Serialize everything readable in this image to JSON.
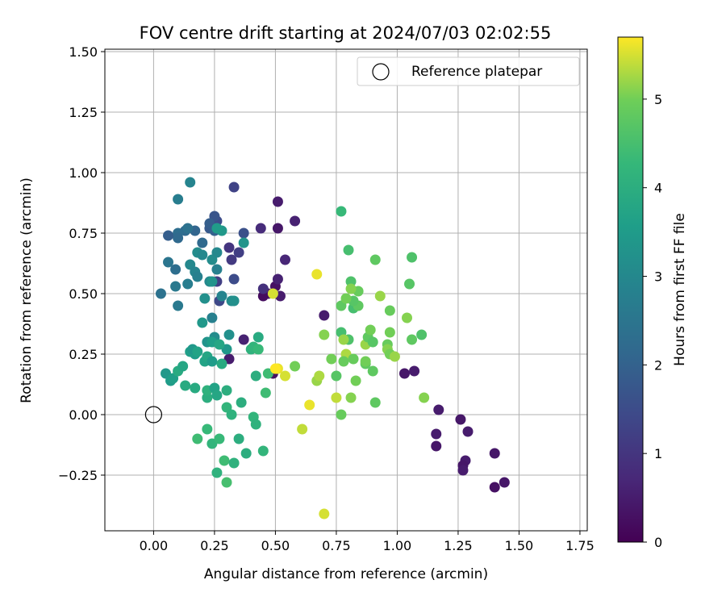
{
  "chart_data": {
    "type": "scatter",
    "title": "FOV centre drift starting at 2024/07/03 02:02:55",
    "xlabel": "Angular distance from reference (arcmin)",
    "ylabel": "Rotation from reference (arcmin)",
    "xlim": [
      -0.2,
      1.78
    ],
    "ylim": [
      -0.48,
      1.51
    ],
    "xticks": [
      "0.00",
      "0.25",
      "0.50",
      "0.75",
      "1.00",
      "1.25",
      "1.50",
      "1.75"
    ],
    "xtick_values": [
      0,
      0.25,
      0.5,
      0.75,
      1.0,
      1.25,
      1.5,
      1.75
    ],
    "yticks": [
      "−0.25",
      "0.00",
      "0.25",
      "0.50",
      "0.75",
      "1.00",
      "1.25",
      "1.50"
    ],
    "ytick_values": [
      -0.25,
      0,
      0.25,
      0.5,
      0.75,
      1.0,
      1.25,
      1.5
    ],
    "grid": true,
    "legend": {
      "position": "upper right",
      "entries": [
        "Reference platepar"
      ]
    },
    "reference_point": {
      "x": 0.0,
      "y": 0.0
    },
    "colorbar": {
      "label": "Hours from first FF file",
      "range": [
        0,
        5.7
      ],
      "ticks": [
        "0",
        "1",
        "2",
        "3",
        "4",
        "5"
      ],
      "tick_values": [
        0,
        1,
        2,
        3,
        4,
        5
      ],
      "colormap": "viridis"
    },
    "points": [
      [
        0.5,
        0.53,
        0.3
      ],
      [
        0.47,
        0.5,
        0.4
      ],
      [
        0.45,
        0.49,
        0.2
      ],
      [
        0.52,
        0.49,
        0.5
      ],
      [
        0.51,
        0.56,
        0.6
      ],
      [
        0.54,
        0.64,
        0.7
      ],
      [
        0.44,
        0.77,
        0.8
      ],
      [
        0.51,
        0.77,
        0.4
      ],
      [
        0.58,
        0.8,
        0.6
      ],
      [
        0.51,
        0.88,
        0.5
      ],
      [
        0.45,
        0.52,
        0.9
      ],
      [
        0.7,
        0.41,
        0.5
      ],
      [
        0.49,
        0.17,
        0.3
      ],
      [
        0.37,
        0.31,
        0.6
      ],
      [
        0.31,
        0.23,
        0.5
      ],
      [
        1.03,
        0.17,
        0.4
      ],
      [
        1.07,
        0.18,
        0.5
      ],
      [
        1.17,
        0.02,
        0.5
      ],
      [
        1.16,
        -0.08,
        0.5
      ],
      [
        1.16,
        -0.13,
        0.4
      ],
      [
        1.26,
        -0.02,
        0.4
      ],
      [
        1.29,
        -0.07,
        0.5
      ],
      [
        1.28,
        -0.19,
        0.5
      ],
      [
        1.27,
        -0.21,
        0.4
      ],
      [
        1.27,
        -0.23,
        0.5
      ],
      [
        1.4,
        -0.16,
        0.4
      ],
      [
        1.4,
        -0.3,
        0.3
      ],
      [
        1.44,
        -0.28,
        0.4
      ],
      [
        0.33,
        0.94,
        1.3
      ],
      [
        0.32,
        0.64,
        1.1
      ],
      [
        0.35,
        0.67,
        1.2
      ],
      [
        0.31,
        0.69,
        1.0
      ],
      [
        0.26,
        0.55,
        1.2
      ],
      [
        0.33,
        0.56,
        1.5
      ],
      [
        0.27,
        0.47,
        1.4
      ],
      [
        0.37,
        0.75,
        1.6
      ],
      [
        0.26,
        0.8,
        1.5
      ],
      [
        0.25,
        0.82,
        1.7
      ],
      [
        0.23,
        0.77,
        1.8
      ],
      [
        0.25,
        0.76,
        2.0
      ],
      [
        0.23,
        0.79,
        1.9
      ],
      [
        0.2,
        0.71,
        2.2
      ],
      [
        0.17,
        0.76,
        2.1
      ],
      [
        0.13,
        0.76,
        2.2
      ],
      [
        0.14,
        0.77,
        2.4
      ],
      [
        0.1,
        0.75,
        2.3
      ],
      [
        0.1,
        0.73,
        2.2
      ],
      [
        0.06,
        0.74,
        1.9
      ],
      [
        0.03,
        0.5,
        2.4
      ],
      [
        0.06,
        0.63,
        2.5
      ],
      [
        0.09,
        0.6,
        2.3
      ],
      [
        0.09,
        0.53,
        2.6
      ],
      [
        0.14,
        0.54,
        2.7
      ],
      [
        0.1,
        0.45,
        2.6
      ],
      [
        0.1,
        0.89,
        2.7
      ],
      [
        0.15,
        0.96,
        2.9
      ],
      [
        0.15,
        0.62,
        3.0
      ],
      [
        0.17,
        0.59,
        2.9
      ],
      [
        0.18,
        0.57,
        2.8
      ],
      [
        0.18,
        0.67,
        3.1
      ],
      [
        0.2,
        0.66,
        3.0
      ],
      [
        0.21,
        0.48,
        3.2
      ],
      [
        0.23,
        0.55,
        3.0
      ],
      [
        0.24,
        0.55,
        3.3
      ],
      [
        0.24,
        0.64,
        3.1
      ],
      [
        0.26,
        0.6,
        2.8
      ],
      [
        0.26,
        0.67,
        3.0
      ],
      [
        0.28,
        0.49,
        2.9
      ],
      [
        0.32,
        0.47,
        3.1
      ],
      [
        0.33,
        0.47,
        3.2
      ],
      [
        0.37,
        0.71,
        3.3
      ],
      [
        0.28,
        0.76,
        3.4
      ],
      [
        0.26,
        0.77,
        3.5
      ],
      [
        0.2,
        0.38,
        3.4
      ],
      [
        0.24,
        0.4,
        2.8
      ],
      [
        0.25,
        0.32,
        3.1
      ],
      [
        0.31,
        0.33,
        3.2
      ],
      [
        0.22,
        0.3,
        3.3
      ],
      [
        0.24,
        0.3,
        3.6
      ],
      [
        0.3,
        0.27,
        3.4
      ],
      [
        0.17,
        0.25,
        3.5
      ],
      [
        0.15,
        0.26,
        3.6
      ],
      [
        0.16,
        0.27,
        3.4
      ],
      [
        0.18,
        0.26,
        3.7
      ],
      [
        0.21,
        0.22,
        3.7
      ],
      [
        0.22,
        0.24,
        3.8
      ],
      [
        0.24,
        0.22,
        3.5
      ],
      [
        0.27,
        0.29,
        3.8
      ],
      [
        0.28,
        0.21,
        3.9
      ],
      [
        0.05,
        0.17,
        3.4
      ],
      [
        0.07,
        0.14,
        3.5
      ],
      [
        0.08,
        0.15,
        3.6
      ],
      [
        0.1,
        0.18,
        3.9
      ],
      [
        0.12,
        0.2,
        3.8
      ],
      [
        0.13,
        0.12,
        3.9
      ],
      [
        0.17,
        0.11,
        3.9
      ],
      [
        0.22,
        0.07,
        4.0
      ],
      [
        0.22,
        0.1,
        4.1
      ],
      [
        0.25,
        0.11,
        3.7
      ],
      [
        0.26,
        0.08,
        3.8
      ],
      [
        0.3,
        0.1,
        4.0
      ],
      [
        0.3,
        0.03,
        4.2
      ],
      [
        0.32,
        0.0,
        4.1
      ],
      [
        0.36,
        0.05,
        4.0
      ],
      [
        0.4,
        0.27,
        4.1
      ],
      [
        0.41,
        0.28,
        4.2
      ],
      [
        0.43,
        0.32,
        3.9
      ],
      [
        0.43,
        0.27,
        4.3
      ],
      [
        0.42,
        0.16,
        4.0
      ],
      [
        0.46,
        0.09,
        4.4
      ],
      [
        0.47,
        0.17,
        4.4
      ],
      [
        0.41,
        -0.01,
        4.2
      ],
      [
        0.42,
        -0.04,
        4.1
      ],
      [
        0.22,
        -0.06,
        4.3
      ],
      [
        0.24,
        -0.12,
        4.2
      ],
      [
        0.18,
        -0.1,
        4.4
      ],
      [
        0.27,
        -0.1,
        4.3
      ],
      [
        0.29,
        -0.19,
        4.4
      ],
      [
        0.3,
        -0.28,
        4.5
      ],
      [
        0.26,
        -0.24,
        4.1
      ],
      [
        0.35,
        -0.1,
        4.0
      ],
      [
        0.33,
        -0.2,
        4.1
      ],
      [
        0.38,
        -0.16,
        4.0
      ],
      [
        0.45,
        -0.15,
        4.2
      ],
      [
        0.77,
        0.84,
        4.3
      ],
      [
        0.8,
        0.68,
        4.5
      ],
      [
        1.06,
        0.65,
        4.6
      ],
      [
        0.91,
        0.64,
        4.8
      ],
      [
        1.05,
        0.54,
        4.7
      ],
      [
        0.81,
        0.55,
        4.6
      ],
      [
        0.84,
        0.51,
        4.9
      ],
      [
        0.82,
        0.44,
        4.5
      ],
      [
        0.84,
        0.45,
        4.8
      ],
      [
        0.77,
        0.45,
        4.8
      ],
      [
        0.82,
        0.47,
        4.7
      ],
      [
        0.79,
        0.48,
        5.0
      ],
      [
        0.81,
        0.52,
        5.1
      ],
      [
        0.93,
        0.49,
        5.2
      ],
      [
        0.97,
        0.43,
        4.9
      ],
      [
        1.04,
        0.4,
        5.1
      ],
      [
        1.06,
        0.31,
        4.8
      ],
      [
        1.1,
        0.33,
        4.6
      ],
      [
        0.97,
        0.34,
        5.0
      ],
      [
        0.96,
        0.29,
        4.9
      ],
      [
        0.96,
        0.27,
        5.1
      ],
      [
        0.97,
        0.25,
        5.0
      ],
      [
        0.99,
        0.24,
        5.2
      ],
      [
        0.87,
        0.29,
        5.2
      ],
      [
        0.88,
        0.32,
        4.8
      ],
      [
        0.89,
        0.35,
        5.0
      ],
      [
        0.9,
        0.3,
        4.7
      ],
      [
        0.8,
        0.31,
        4.6
      ],
      [
        0.77,
        0.34,
        4.5
      ],
      [
        0.78,
        0.31,
        5.2
      ],
      [
        0.79,
        0.25,
        5.3
      ],
      [
        0.82,
        0.23,
        4.9
      ],
      [
        0.87,
        0.21,
        4.8
      ],
      [
        0.87,
        0.22,
        5.0
      ],
      [
        0.9,
        0.18,
        4.8
      ],
      [
        0.83,
        0.14,
        5.0
      ],
      [
        0.78,
        0.22,
        4.9
      ],
      [
        0.73,
        0.23,
        5.0
      ],
      [
        0.7,
        0.33,
        5.1
      ],
      [
        0.75,
        0.16,
        4.7
      ],
      [
        0.67,
        0.14,
        5.2
      ],
      [
        0.68,
        0.16,
        5.3
      ],
      [
        0.75,
        0.07,
        5.4
      ],
      [
        0.81,
        0.07,
        5.1
      ],
      [
        0.91,
        0.05,
        4.8
      ],
      [
        0.77,
        0.0,
        4.9
      ],
      [
        1.11,
        0.07,
        5.1
      ],
      [
        0.64,
        0.04,
        5.6
      ],
      [
        0.61,
        -0.06,
        5.4
      ],
      [
        0.58,
        0.2,
        5.0
      ],
      [
        0.54,
        0.16,
        5.5
      ],
      [
        0.51,
        0.19,
        5.6
      ],
      [
        0.5,
        0.19,
        5.7
      ],
      [
        0.49,
        0.5,
        5.5
      ],
      [
        0.67,
        0.58,
        5.6
      ],
      [
        0.7,
        -0.41,
        5.5
      ]
    ]
  }
}
